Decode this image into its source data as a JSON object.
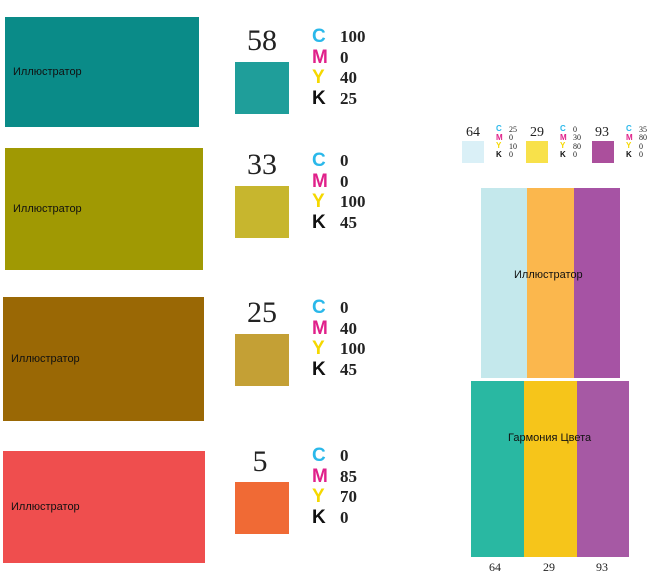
{
  "rows": [
    {
      "label": "Иллюстратор",
      "number": "58",
      "big_color": "#0a8b88",
      "chip_color": "#1f9e9a",
      "cmyk": [
        "100",
        "0",
        "40",
        "25"
      ]
    },
    {
      "label": "Иллюстратор",
      "number": "33",
      "big_color": "#a09903",
      "chip_color": "#c7b62e",
      "cmyk": [
        "0",
        "0",
        "100",
        "45"
      ]
    },
    {
      "label": "Иллюстратор",
      "number": "25",
      "big_color": "#9a6805",
      "chip_color": "#c4a035",
      "cmyk": [
        "0",
        "40",
        "100",
        "45"
      ]
    },
    {
      "label": "Иллюстратор",
      "number": "5",
      "big_color": "#ef4e4e",
      "chip_color": "#f06a35",
      "cmyk": [
        "0",
        "85",
        "70",
        "0"
      ]
    }
  ],
  "cmyk_letters": {
    "c": "C",
    "m": "M",
    "y": "Y",
    "k": "K"
  },
  "cmyk_colors": {
    "c": "#2ab8ea",
    "m": "#e0218a",
    "y": "#f5d800",
    "k": "#111111"
  },
  "mini": [
    {
      "number": "64",
      "color": "#daf0f7",
      "cmyk": [
        "25",
        "0",
        "10",
        "0"
      ]
    },
    {
      "number": "29",
      "color": "#f8e14a",
      "cmyk": [
        "0",
        "30",
        "80",
        "0"
      ]
    },
    {
      "number": "93",
      "color": "#ab4f9c",
      "cmyk": [
        "35",
        "80",
        "0",
        "0"
      ]
    }
  ],
  "top_stripes": {
    "label": "Иллюстратор",
    "colors": [
      "#c4e8ec",
      "#fbb74d",
      "#a653a4"
    ]
  },
  "bottom_stripes": {
    "label": "Гармония Цвета",
    "colors": [
      "#29b8a2",
      "#f6c51a",
      "#a659a4"
    ],
    "numbers": [
      "64",
      "29",
      "93"
    ]
  }
}
